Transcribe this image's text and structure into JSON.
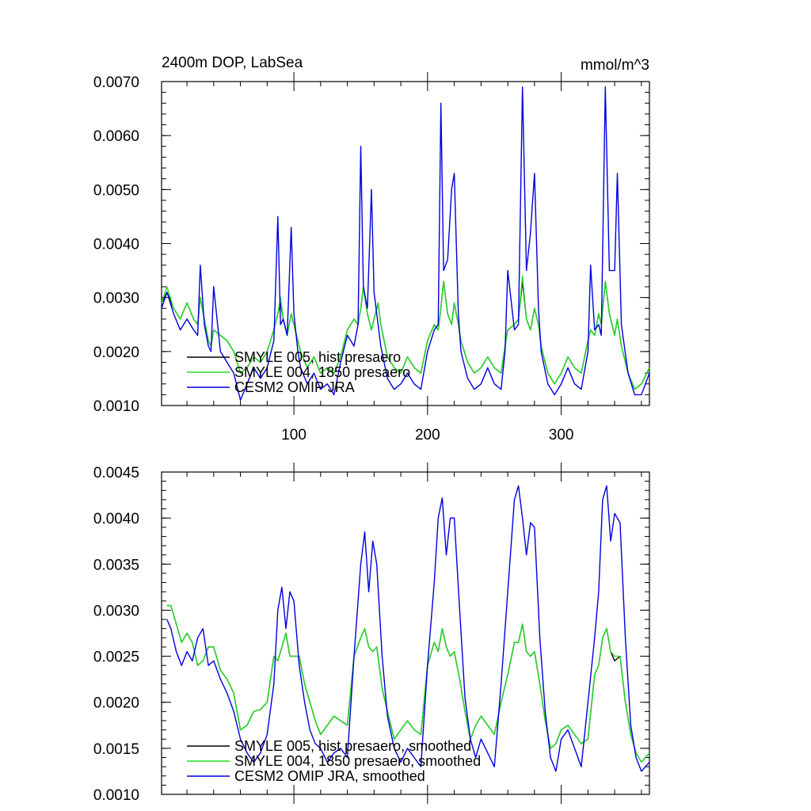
{
  "chart_data": [
    {
      "type": "line",
      "title": "2400m DOP, LabSea",
      "units": "mmol/m^3",
      "xlabel": "",
      "ylabel": "",
      "xlim": [
        1,
        366
      ],
      "ylim": [
        0.001,
        0.007
      ],
      "xticks": [
        100,
        200,
        300
      ],
      "xtick_labels": [
        "100",
        "200",
        "300"
      ],
      "yticks": [
        0.001,
        0.002,
        0.003,
        0.004,
        0.005,
        0.006,
        0.007
      ],
      "ytick_labels": [
        "0.0010",
        "0.0020",
        "0.0030",
        "0.0040",
        "0.0050",
        "0.0060",
        "0.0070"
      ],
      "legend_position": "bottom-left",
      "legend": [
        "SMYLE 005, hist presaero",
        "SMYLE 004, 1850 presaero",
        "CESM2 OMIP JRA"
      ],
      "x": [
        1,
        5,
        10,
        15,
        20,
        25,
        28,
        30,
        33,
        36,
        38,
        40,
        45,
        50,
        55,
        60,
        65,
        70,
        75,
        80,
        85,
        88,
        90,
        92,
        95,
        98,
        100,
        103,
        105,
        110,
        115,
        120,
        125,
        130,
        135,
        140,
        145,
        148,
        150,
        152,
        155,
        158,
        160,
        163,
        165,
        170,
        175,
        180,
        185,
        190,
        195,
        200,
        205,
        208,
        210,
        212,
        215,
        218,
        220,
        223,
        225,
        230,
        235,
        240,
        245,
        250,
        255,
        258,
        260,
        265,
        268,
        271,
        274,
        277,
        280,
        283,
        285,
        290,
        295,
        300,
        305,
        310,
        315,
        320,
        322,
        325,
        328,
        330,
        333,
        336,
        340,
        342,
        345,
        350,
        355,
        360,
        366
      ],
      "series": [
        {
          "name": "SMYLE 005, hist presaero",
          "color": "#000000",
          "values": [
            0.0029,
            0.0031,
            0.0028,
            0.0026,
            0.0029,
            0.0026,
            0.0025,
            0.003,
            0.0026,
            0.0022,
            0.0021,
            0.0024,
            0.0023,
            0.0022,
            0.002,
            0.0016,
            0.0017,
            0.0019,
            0.0018,
            0.002,
            0.0024,
            0.0027,
            0.0029,
            0.0026,
            0.0023,
            0.0027,
            0.0025,
            0.0022,
            0.002,
            0.0017,
            0.0019,
            0.0016,
            0.0017,
            0.0016,
            0.0019,
            0.0024,
            0.0026,
            0.0025,
            0.0028,
            0.0032,
            0.0027,
            0.0024,
            0.0026,
            0.0029,
            0.0025,
            0.0019,
            0.0017,
            0.0016,
            0.0019,
            0.0017,
            0.0016,
            0.0022,
            0.0025,
            0.0024,
            0.0028,
            0.0033,
            0.0027,
            0.0025,
            0.0029,
            0.0025,
            0.0022,
            0.0018,
            0.0016,
            0.0017,
            0.0019,
            0.0017,
            0.0016,
            0.0021,
            0.0024,
            0.0025,
            0.0026,
            0.0033,
            0.0026,
            0.0024,
            0.0028,
            0.0025,
            0.0021,
            0.0016,
            0.0014,
            0.0016,
            0.0019,
            0.0017,
            0.0016,
            0.0022,
            0.0024,
            0.0023,
            0.0027,
            0.0025,
            0.0033,
            0.0027,
            0.0023,
            0.0026,
            0.0021,
            0.0016,
            0.0013,
            0.0014,
            0.0017
          ]
        },
        {
          "name": "SMYLE 004, 1850 presaero",
          "color": "#22dd22",
          "values": [
            0.0029,
            0.0032,
            0.0028,
            0.0026,
            0.0029,
            0.0026,
            0.0025,
            0.003,
            0.0026,
            0.0022,
            0.0021,
            0.0024,
            0.0023,
            0.0022,
            0.002,
            0.0016,
            0.0017,
            0.0019,
            0.0018,
            0.002,
            0.0024,
            0.0027,
            0.003,
            0.0026,
            0.0023,
            0.0027,
            0.0025,
            0.0022,
            0.002,
            0.0017,
            0.0019,
            0.0016,
            0.0017,
            0.0016,
            0.0019,
            0.0024,
            0.0026,
            0.0025,
            0.0028,
            0.0032,
            0.0027,
            0.0024,
            0.0026,
            0.0029,
            0.0025,
            0.0019,
            0.0017,
            0.0016,
            0.0019,
            0.0017,
            0.0016,
            0.0022,
            0.0025,
            0.0024,
            0.0028,
            0.0033,
            0.0027,
            0.0025,
            0.0029,
            0.0025,
            0.0022,
            0.0018,
            0.0016,
            0.0017,
            0.0019,
            0.0017,
            0.0016,
            0.0021,
            0.0024,
            0.0025,
            0.0026,
            0.0034,
            0.0026,
            0.0024,
            0.0028,
            0.0025,
            0.0021,
            0.0016,
            0.0014,
            0.0016,
            0.0019,
            0.0017,
            0.0016,
            0.0022,
            0.0024,
            0.0023,
            0.0027,
            0.0025,
            0.0033,
            0.0027,
            0.0023,
            0.0026,
            0.0021,
            0.0016,
            0.0013,
            0.0014,
            0.0017
          ]
        },
        {
          "name": "CESM2 OMIP JRA",
          "color": "#0000dd",
          "values": [
            0.0028,
            0.0031,
            0.0027,
            0.0024,
            0.0026,
            0.0024,
            0.0023,
            0.0036,
            0.0025,
            0.0021,
            0.002,
            0.0032,
            0.002,
            0.0018,
            0.0016,
            0.0011,
            0.0014,
            0.0017,
            0.0015,
            0.0017,
            0.0022,
            0.0045,
            0.0025,
            0.0026,
            0.0023,
            0.0043,
            0.0027,
            0.002,
            0.0017,
            0.0014,
            0.0016,
            0.0013,
            0.0014,
            0.0012,
            0.0018,
            0.0023,
            0.0021,
            0.0025,
            0.0058,
            0.0032,
            0.0028,
            0.005,
            0.0031,
            0.0025,
            0.0021,
            0.0015,
            0.0013,
            0.0014,
            0.0016,
            0.0014,
            0.0013,
            0.002,
            0.0024,
            0.0025,
            0.0066,
            0.0035,
            0.0037,
            0.005,
            0.0053,
            0.0027,
            0.002,
            0.0015,
            0.0013,
            0.0014,
            0.0017,
            0.0014,
            0.0013,
            0.002,
            0.0035,
            0.0024,
            0.0025,
            0.0069,
            0.0035,
            0.0042,
            0.0053,
            0.0028,
            0.002,
            0.0014,
            0.0012,
            0.0014,
            0.0017,
            0.0014,
            0.0013,
            0.002,
            0.0036,
            0.0024,
            0.0025,
            0.0023,
            0.0069,
            0.0035,
            0.0035,
            0.0053,
            0.0025,
            0.0016,
            0.0012,
            0.0012,
            0.0016
          ]
        }
      ]
    },
    {
      "type": "line",
      "title": "",
      "xlabel": "",
      "ylabel": "",
      "xlim": [
        1,
        366
      ],
      "ylim": [
        0.001,
        0.0045
      ],
      "xticks": [
        100,
        200,
        300
      ],
      "xtick_labels": [
        "",
        "",
        ""
      ],
      "yticks": [
        0.001,
        0.0015,
        0.002,
        0.0025,
        0.003,
        0.0035,
        0.004,
        0.0045
      ],
      "ytick_labels": [
        "0.0010",
        "0.0015",
        "0.0020",
        "0.0025",
        "0.0030",
        "0.0035",
        "0.0040",
        "0.0045"
      ],
      "legend_position": "bottom-left",
      "legend": [
        "SMYLE 005, hist presaero, smoothed",
        "SMYLE 004, 1850 presaero, smoothed",
        "CESM2 OMIP JRA, smoothed"
      ],
      "x": [
        5,
        8,
        12,
        16,
        20,
        24,
        28,
        32,
        36,
        40,
        45,
        50,
        55,
        60,
        65,
        70,
        75,
        80,
        85,
        88,
        91,
        94,
        97,
        100,
        104,
        108,
        112,
        116,
        120,
        125,
        130,
        135,
        140,
        145,
        150,
        153,
        156,
        159,
        162,
        166,
        170,
        175,
        180,
        185,
        190,
        195,
        200,
        205,
        208,
        211,
        214,
        217,
        220,
        224,
        228,
        232,
        236,
        240,
        245,
        250,
        255,
        260,
        265,
        268,
        271,
        274,
        277,
        280,
        284,
        288,
        292,
        296,
        300,
        305,
        310,
        315,
        320,
        325,
        328,
        331,
        334,
        337,
        340,
        344,
        348,
        352,
        356,
        360,
        366
      ],
      "series": [
        {
          "name": "SMYLE 005, hist presaero, smoothed",
          "color": "#000000",
          "values": [
            0.00305,
            0.00305,
            0.00285,
            0.00265,
            0.00275,
            0.00265,
            0.0024,
            0.00245,
            0.0026,
            0.0026,
            0.00235,
            0.00225,
            0.0021,
            0.0017,
            0.00175,
            0.0019,
            0.00192,
            0.002,
            0.0025,
            0.00245,
            0.0026,
            0.00275,
            0.0025,
            0.0025,
            0.0025,
            0.0022,
            0.002,
            0.0018,
            0.00165,
            0.00175,
            0.00185,
            0.0018,
            0.00175,
            0.0025,
            0.0027,
            0.0028,
            0.0026,
            0.00255,
            0.0026,
            0.00215,
            0.0019,
            0.0016,
            0.0017,
            0.0018,
            0.0017,
            0.00165,
            0.0024,
            0.00265,
            0.00255,
            0.0028,
            0.0026,
            0.0025,
            0.00255,
            0.00225,
            0.0019,
            0.0016,
            0.00175,
            0.00185,
            0.00175,
            0.00165,
            0.002,
            0.0023,
            0.00265,
            0.00265,
            0.00285,
            0.00255,
            0.0025,
            0.00255,
            0.0022,
            0.0018,
            0.0015,
            0.00155,
            0.0017,
            0.00175,
            0.00165,
            0.00155,
            0.0016,
            0.0023,
            0.0024,
            0.0027,
            0.0028,
            0.00255,
            0.00245,
            0.0025,
            0.002,
            0.00165,
            0.00145,
            0.00135,
            0.00145
          ]
        },
        {
          "name": "SMYLE 004, 1850 presaero, smoothed",
          "color": "#22dd22",
          "values": [
            0.00305,
            0.00305,
            0.00285,
            0.00265,
            0.00275,
            0.00265,
            0.0024,
            0.00245,
            0.0026,
            0.0026,
            0.00235,
            0.00225,
            0.0021,
            0.0017,
            0.00175,
            0.0019,
            0.00192,
            0.002,
            0.0025,
            0.00245,
            0.0026,
            0.00275,
            0.0025,
            0.0025,
            0.0025,
            0.0022,
            0.002,
            0.0018,
            0.00165,
            0.00175,
            0.00185,
            0.0018,
            0.00175,
            0.0025,
            0.0027,
            0.0028,
            0.0026,
            0.00255,
            0.0026,
            0.00215,
            0.0019,
            0.0016,
            0.0017,
            0.0018,
            0.0017,
            0.00165,
            0.0024,
            0.00265,
            0.00255,
            0.0028,
            0.0026,
            0.0025,
            0.00255,
            0.00225,
            0.0019,
            0.0016,
            0.00175,
            0.00185,
            0.00175,
            0.00165,
            0.002,
            0.0023,
            0.00265,
            0.00265,
            0.00285,
            0.00255,
            0.0025,
            0.00255,
            0.0022,
            0.0018,
            0.0015,
            0.00155,
            0.0017,
            0.00175,
            0.00165,
            0.00155,
            0.0016,
            0.0023,
            0.0024,
            0.0027,
            0.0028,
            0.00255,
            0.0025,
            0.0025,
            0.002,
            0.00165,
            0.00145,
            0.00135,
            0.00145
          ]
        },
        {
          "name": "CESM2 OMIP JRA, smoothed",
          "color": "#0000dd",
          "values": [
            0.0029,
            0.0028,
            0.00255,
            0.0024,
            0.00255,
            0.00245,
            0.0027,
            0.0028,
            0.0024,
            0.00245,
            0.00225,
            0.0021,
            0.0019,
            0.0016,
            0.00145,
            0.00135,
            0.00145,
            0.00165,
            0.0022,
            0.003,
            0.00325,
            0.0028,
            0.0032,
            0.0031,
            0.0024,
            0.002,
            0.0017,
            0.00155,
            0.0015,
            0.00135,
            0.00145,
            0.0015,
            0.0014,
            0.0025,
            0.0035,
            0.00385,
            0.0032,
            0.00375,
            0.0035,
            0.0025,
            0.00185,
            0.0015,
            0.00135,
            0.0015,
            0.0014,
            0.0013,
            0.0024,
            0.0033,
            0.004,
            0.00422,
            0.0036,
            0.004,
            0.004,
            0.003,
            0.00205,
            0.0016,
            0.0014,
            0.0016,
            0.00145,
            0.0013,
            0.0022,
            0.0032,
            0.0042,
            0.00435,
            0.004,
            0.0036,
            0.00395,
            0.0039,
            0.0027,
            0.0019,
            0.0014,
            0.00125,
            0.0016,
            0.0017,
            0.0015,
            0.0013,
            0.002,
            0.0027,
            0.0032,
            0.0042,
            0.00435,
            0.00375,
            0.00405,
            0.00395,
            0.0027,
            0.00175,
            0.0014,
            0.00125,
            0.00135
          ]
        }
      ]
    }
  ]
}
